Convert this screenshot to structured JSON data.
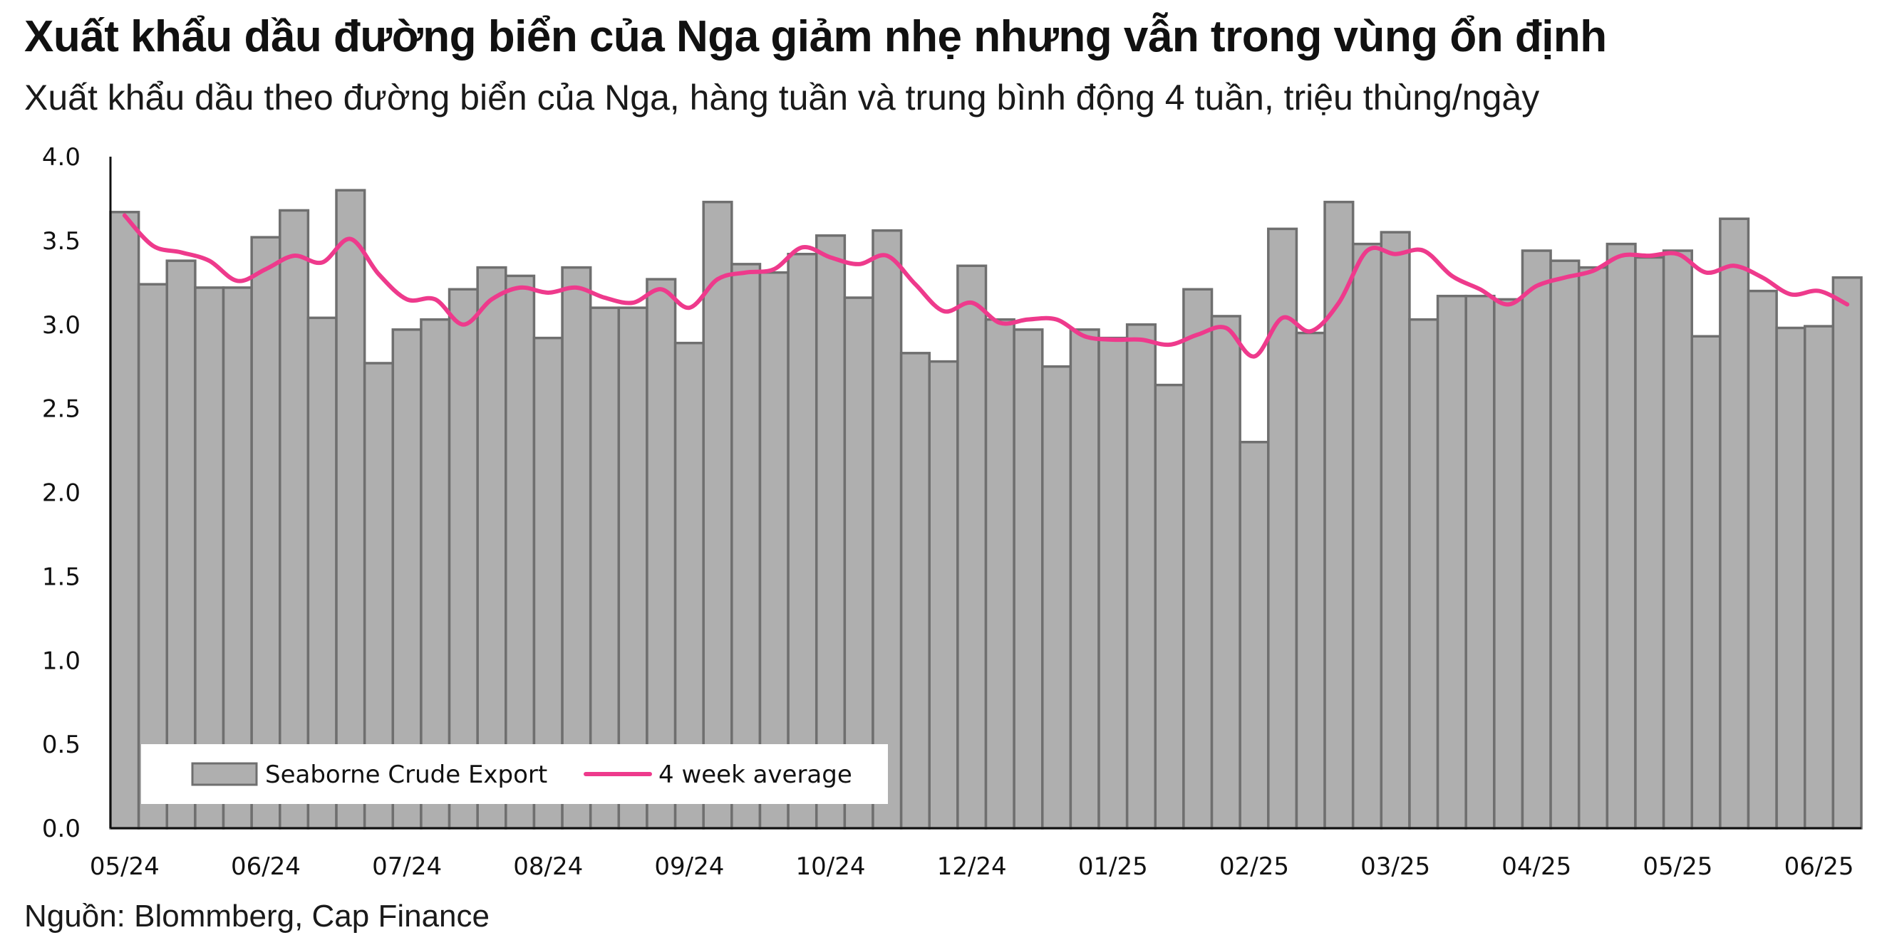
{
  "title": "Xuất khẩu dầu đường biển của Nga giảm nhẹ nhưng vẫn trong vùng ổn định",
  "subtitle": "Xuất khẩu dầu theo đường biển của Nga, hàng tuần và trung bình động 4 tuần, triệu thùng/ngày",
  "source": "Nguồn: Blommberg, Cap Finance",
  "colors": {
    "bar_fill": "#afafaf",
    "bar_stroke": "#6f6f6f",
    "line": "#ee3a8c",
    "axis": "#111111"
  },
  "chart_data": {
    "type": "bar",
    "ylim": [
      0,
      4.0
    ],
    "yticks": [
      "0.0",
      "0.5",
      "1.0",
      "1.5",
      "2.0",
      "2.5",
      "3.0",
      "3.5",
      "4.0"
    ],
    "xticks": [
      {
        "label": "05/24",
        "index": 0
      },
      {
        "label": "06/24",
        "index": 5
      },
      {
        "label": "07/24",
        "index": 10
      },
      {
        "label": "08/24",
        "index": 15
      },
      {
        "label": "09/24",
        "index": 20
      },
      {
        "label": "10/24",
        "index": 25
      },
      {
        "label": "12/24",
        "index": 30
      },
      {
        "label": "01/25",
        "index": 35
      },
      {
        "label": "02/25",
        "index": 40
      },
      {
        "label": "03/25",
        "index": 45
      },
      {
        "label": "04/25",
        "index": 50
      },
      {
        "label": "05/25",
        "index": 55
      },
      {
        "label": "06/25",
        "index": 60
      }
    ],
    "grid": false,
    "legend_position": "bottom-left",
    "series": [
      {
        "name": "Seaborne Crude Export",
        "kind": "bar",
        "values": [
          3.67,
          3.24,
          3.38,
          3.22,
          3.22,
          3.52,
          3.68,
          3.04,
          3.8,
          2.77,
          2.97,
          3.03,
          3.21,
          3.34,
          3.29,
          2.92,
          3.34,
          3.1,
          3.1,
          3.27,
          2.89,
          3.73,
          3.36,
          3.31,
          3.42,
          3.53,
          3.16,
          3.56,
          2.83,
          2.78,
          3.35,
          3.03,
          2.97,
          2.75,
          2.97,
          2.92,
          3.0,
          2.64,
          3.21,
          3.05,
          2.3,
          3.57,
          2.95,
          3.73,
          3.48,
          3.55,
          3.03,
          3.17,
          3.17,
          3.15,
          3.44,
          3.38,
          3.34,
          3.48,
          3.4,
          3.44,
          2.93,
          3.63,
          3.2,
          2.98,
          2.99,
          3.28
        ]
      },
      {
        "name": "4 week average",
        "kind": "line",
        "values": [
          3.65,
          3.47,
          3.43,
          3.38,
          3.26,
          3.33,
          3.41,
          3.37,
          3.51,
          3.3,
          3.15,
          3.15,
          3.0,
          3.15,
          3.22,
          3.19,
          3.22,
          3.16,
          3.13,
          3.21,
          3.1,
          3.27,
          3.31,
          3.33,
          3.46,
          3.4,
          3.36,
          3.41,
          3.24,
          3.08,
          3.13,
          3.01,
          3.03,
          3.03,
          2.93,
          2.91,
          2.91,
          2.88,
          2.94,
          2.98,
          2.81,
          3.04,
          2.96,
          3.13,
          3.44,
          3.42,
          3.44,
          3.29,
          3.21,
          3.12,
          3.23,
          3.28,
          3.32,
          3.41,
          3.41,
          3.42,
          3.31,
          3.35,
          3.28,
          3.18,
          3.2,
          3.12
        ]
      }
    ]
  }
}
